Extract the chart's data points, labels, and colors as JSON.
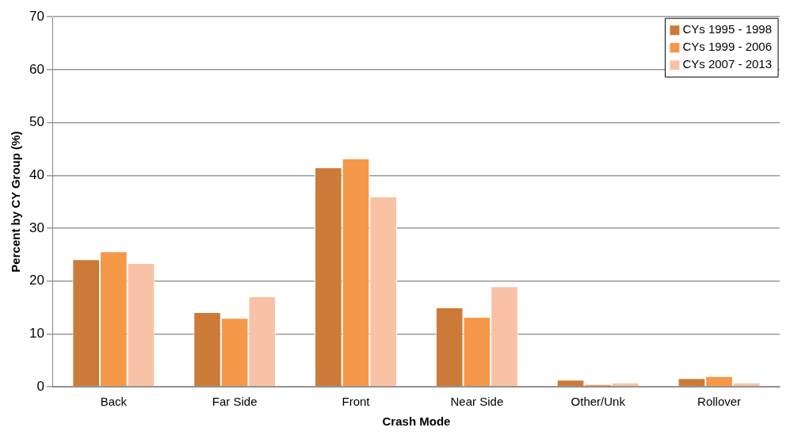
{
  "chart_data": {
    "type": "bar",
    "xlabel": "Crash Mode",
    "ylabel": "Percent by CY Group (%)",
    "categories": [
      "Back",
      "Far Side",
      "Front",
      "Near Side",
      "Other/Unk",
      "Rollover"
    ],
    "series": [
      {
        "name": "CYs 1995 - 1998",
        "color": "#cc7a38",
        "values": [
          24.1,
          14.1,
          41.5,
          15.0,
          1.3,
          1.6
        ]
      },
      {
        "name": "CYs 1999 - 2006",
        "color": "#f59847",
        "values": [
          25.6,
          13.0,
          43.2,
          13.2,
          0.5,
          2.0
        ]
      },
      {
        "name": "CYs 2007 - 2013",
        "color": "#f9c2a6",
        "values": [
          23.4,
          17.1,
          36.0,
          19.0,
          0.8,
          0.8
        ]
      }
    ],
    "ylim": [
      0,
      70
    ],
    "yticks": [
      0,
      10,
      20,
      30,
      40,
      50,
      60,
      70
    ],
    "grid": "y",
    "legend": "top right"
  }
}
